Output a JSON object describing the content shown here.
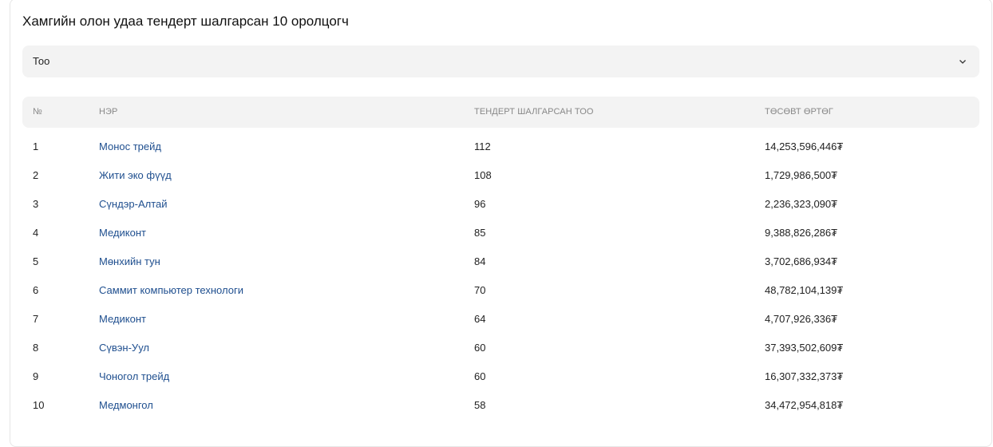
{
  "title": "Хамгийн олон удаа тендерт шалгарсан 10 оролцогч",
  "select": {
    "value": "Тоо",
    "icon": "chevron-down-icon"
  },
  "table": {
    "headers": [
      "№",
      "НЭР",
      "ТЕНДЕРТ ШАЛГАРСАН ТОО",
      "ТӨСӨВТ ӨРТӨГ"
    ],
    "rows": [
      {
        "no": "1",
        "name": "Монос трейд",
        "count": "112",
        "budget": "14,253,596,446₮"
      },
      {
        "no": "2",
        "name": "Жити эко фүүд",
        "count": "108",
        "budget": "1,729,986,500₮"
      },
      {
        "no": "3",
        "name": "Сүндэр-Алтай",
        "count": "96",
        "budget": "2,236,323,090₮"
      },
      {
        "no": "4",
        "name": "Медиконт",
        "count": "85",
        "budget": "9,388,826,286₮"
      },
      {
        "no": "5",
        "name": "Мөнхийн тун",
        "count": "84",
        "budget": "3,702,686,934₮"
      },
      {
        "no": "6",
        "name": "Саммит компьютер технологи",
        "count": "70",
        "budget": "48,782,104,139₮"
      },
      {
        "no": "7",
        "name": "Медиконт",
        "count": "64",
        "budget": "4,707,926,336₮"
      },
      {
        "no": "8",
        "name": "Сүвэн-Уул",
        "count": "60",
        "budget": "37,393,502,609₮"
      },
      {
        "no": "9",
        "name": "Чоногол трейд",
        "count": "60",
        "budget": "16,307,332,373₮"
      },
      {
        "no": "10",
        "name": "Медмонгол",
        "count": "58",
        "budget": "34,472,954,818₮"
      }
    ]
  },
  "colors": {
    "link": "#1f4f8f",
    "header_bg": "#f3f3f3"
  }
}
